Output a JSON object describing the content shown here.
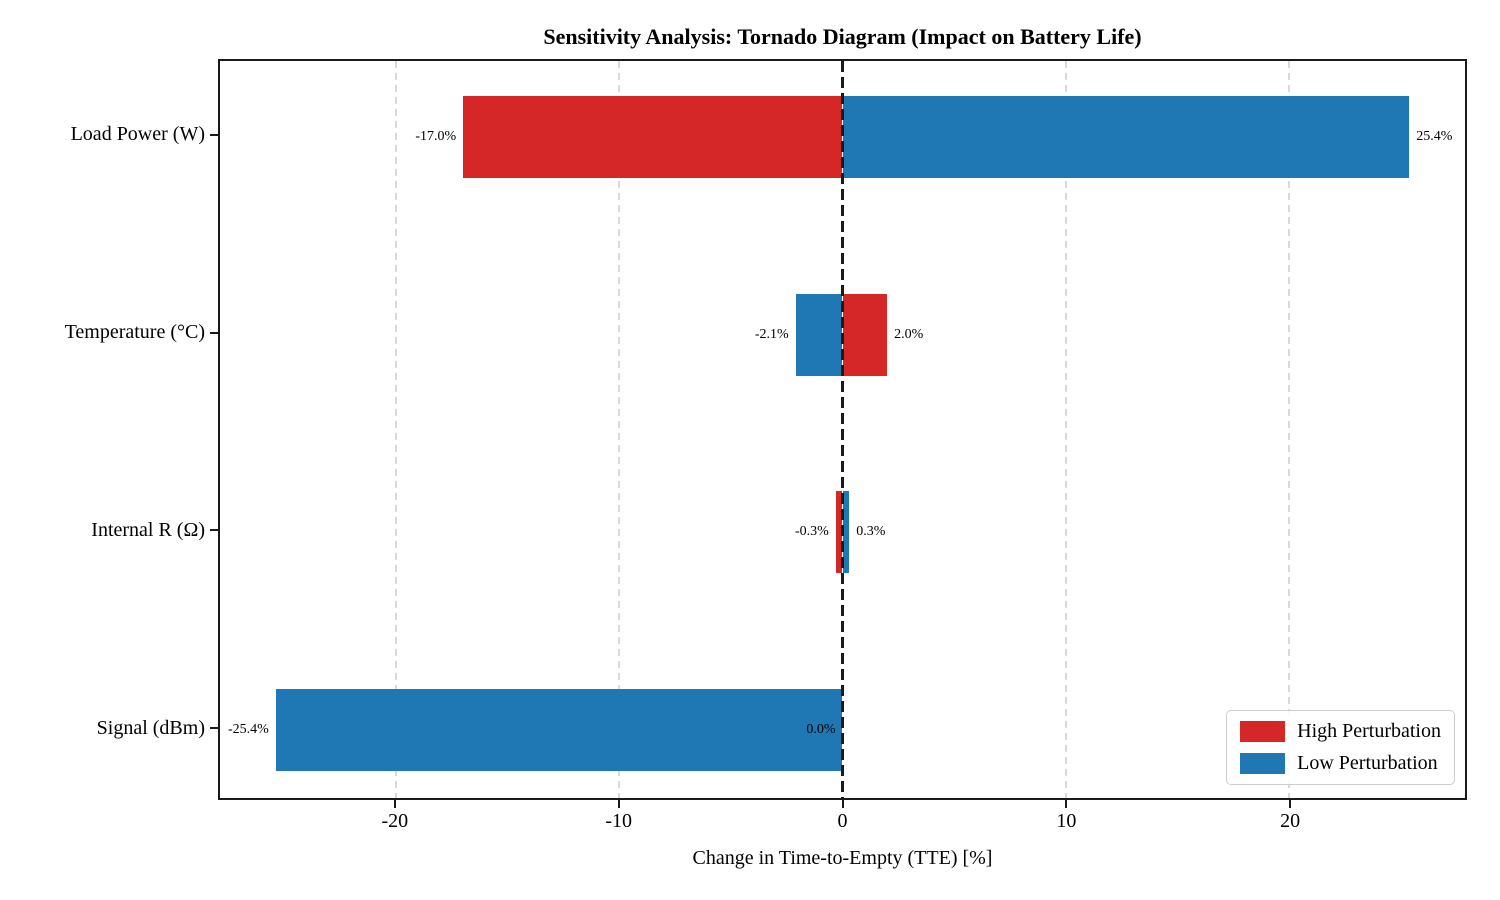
{
  "title": "Sensitivity Analysis: Tornado Diagram (Impact on Battery Life)",
  "xlabel": "Change in Time-to-Empty (TTE) [%]",
  "colors": {
    "high_perturbation": "#d62728",
    "low_perturbation": "#1f77b4",
    "gridline": "#d9d9d9",
    "zero_line": "#1a1a1a",
    "axis_border": "#1a1a1a"
  },
  "legend": {
    "position": "lower right",
    "items": [
      {
        "label": "High Perturbation",
        "color": "#d62728"
      },
      {
        "label": "Low Perturbation",
        "color": "#1f77b4"
      }
    ]
  },
  "chart_data": {
    "type": "bar",
    "orientation": "horizontal",
    "title": "Sensitivity Analysis: Tornado Diagram (Impact on Battery Life)",
    "xlabel": "Change in Time-to-Empty (TTE) [%]",
    "ylabel": "",
    "categories": [
      "Load Power (W)",
      "Temperature (°C)",
      "Internal R (Ω)",
      "Signal (dBm)"
    ],
    "series": [
      {
        "name": "High Perturbation",
        "color": "#d62728",
        "values": [
          -17.0,
          2.0,
          -0.3,
          0.0
        ],
        "value_labels": [
          "-17.0%",
          "2.0%",
          "-0.3%",
          "0.0%"
        ]
      },
      {
        "name": "Low Perturbation",
        "color": "#1f77b4",
        "values": [
          25.4,
          -2.1,
          0.3,
          -25.4
        ],
        "value_labels": [
          "25.4%",
          "-2.1%",
          "0.3%",
          "-25.4%"
        ]
      }
    ],
    "xticks": [
      -20,
      -10,
      0,
      10,
      20
    ],
    "xtick_labels": [
      "-20",
      "-10",
      "0",
      "10",
      "20"
    ],
    "xlim": [
      -27.9,
      27.9
    ],
    "grid": {
      "axis": "x",
      "style": "dashed",
      "color": "#d9d9d9"
    },
    "zero_line": {
      "value": 0,
      "style": "dashed",
      "color": "#1a1a1a"
    },
    "legend_position": "lower right",
    "background": "#ffffff"
  }
}
